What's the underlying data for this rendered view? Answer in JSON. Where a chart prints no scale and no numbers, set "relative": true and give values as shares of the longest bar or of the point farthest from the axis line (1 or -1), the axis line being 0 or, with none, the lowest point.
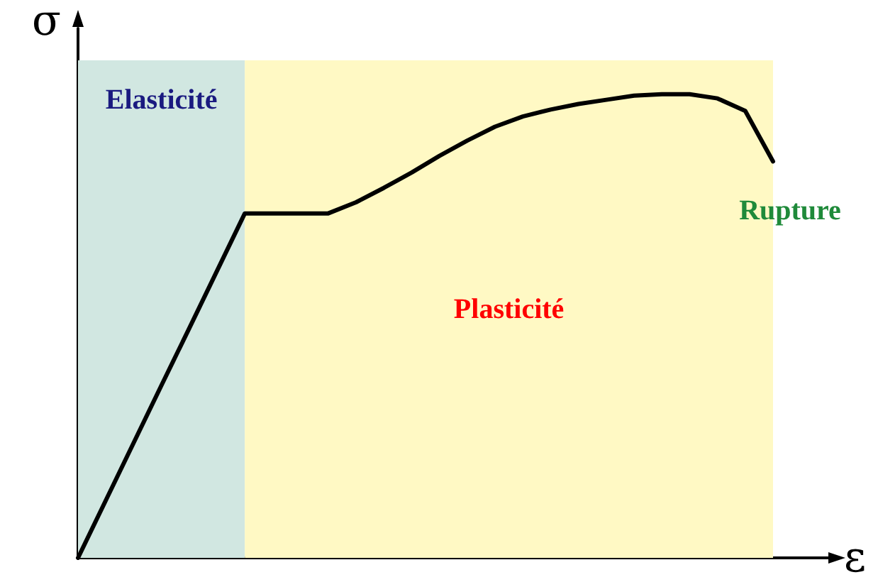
{
  "chart_data": {
    "type": "line",
    "relative": true,
    "xlabel": "ε",
    "ylabel": "σ",
    "categories": [
      null,
      null,
      null,
      null,
      null,
      null,
      null,
      null,
      null,
      null,
      null,
      null,
      null,
      null,
      null,
      null,
      null,
      null,
      null,
      null,
      null,
      null,
      null,
      null,
      null,
      null
    ],
    "series": [
      {
        "color": "#000000",
        "values": [
          0,
          0.124,
          0.248,
          0.372,
          0.495,
          0.619,
          0.743,
          0.743,
          0.743,
          0.743,
          0.767,
          0.798,
          0.831,
          0.867,
          0.9,
          0.93,
          0.952,
          0.967,
          0.979,
          0.988,
          0.997,
          1,
          1,
          0.991,
          0.964,
          0.855
        ]
      }
    ],
    "annotations": [
      "Elasticité",
      "Plasticité",
      "Rupture"
    ],
    "grid": false,
    "marker": "none",
    "line_style": "solid"
  }
}
